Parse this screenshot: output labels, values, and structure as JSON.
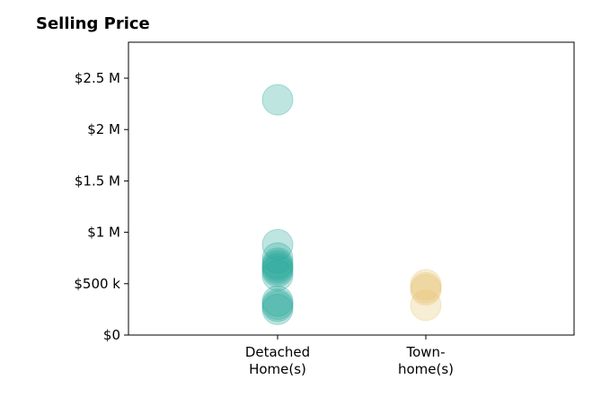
{
  "chart_data": {
    "type": "scatter",
    "title": "Selling Price",
    "xlabel": "",
    "ylabel": "",
    "categories": [
      [
        "Detached",
        "Home(s)"
      ],
      [
        "Town-",
        "home(s)"
      ]
    ],
    "y_ticks": [
      {
        "value": 0,
        "label": "$0"
      },
      {
        "value": 500000,
        "label": "$500 k"
      },
      {
        "value": 1000000,
        "label": "$1 M"
      },
      {
        "value": 1500000,
        "label": "$1.5 M"
      },
      {
        "value": 2000000,
        "label": "$2 M"
      },
      {
        "value": 2500000,
        "label": "$2.5 M"
      }
    ],
    "ylim": [
      0,
      2850000
    ],
    "grid": false,
    "series": [
      {
        "category_index": 0,
        "color": "#2ca89a",
        "values": [
          2290000,
          880000,
          750000,
          700000,
          680000,
          660000,
          640000,
          620000,
          580000,
          330000,
          300000,
          280000,
          250000
        ]
      },
      {
        "category_index": 1,
        "color": "#e8c574",
        "values": [
          490000,
          460000,
          440000,
          290000
        ]
      }
    ]
  }
}
